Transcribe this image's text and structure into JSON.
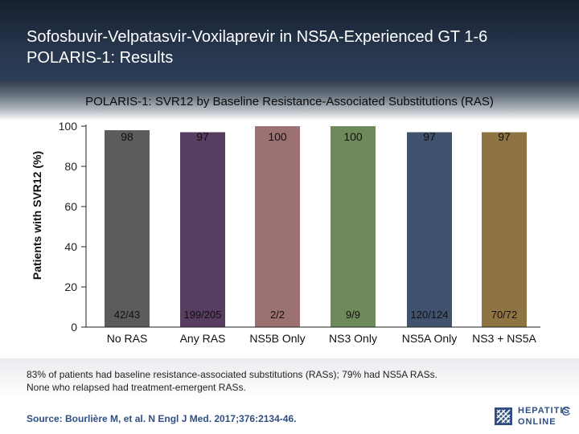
{
  "header": {
    "title_line1": "Sofosbuvir-Velpatasvir-Voxilaprevir in NS5A-Experienced GT 1-6",
    "title_line2": "POLARIS-1: Results"
  },
  "chart_data": {
    "type": "bar",
    "title": "POLARIS-1: SVR12 by Baseline Resistance-Associated Substitutions (RAS)",
    "ylabel": "Patients with SVR12 (%)",
    "xlabel": "",
    "ylim": [
      0,
      100
    ],
    "yticks": [
      0,
      20,
      40,
      60,
      80,
      100
    ],
    "grid": false,
    "categories": [
      "No RAS",
      "Any RAS",
      "NS5B Only",
      "NS3 Only",
      "NS5A Only",
      "NS3 + NS5A"
    ],
    "values": [
      98,
      97,
      100,
      100,
      97,
      97
    ],
    "value_labels": [
      "98",
      "97",
      "100",
      "100",
      "97",
      "97"
    ],
    "counts": [
      "42/43",
      "199/205",
      "2/2",
      "9/9",
      "120/124",
      "70/72"
    ],
    "colors": [
      "#5c5c5c",
      "#583d62",
      "#9b7171",
      "#6e8a5a",
      "#41526f",
      "#8e7443"
    ]
  },
  "footnote": {
    "line1": "83% of patients had baseline resistance-associated substitutions (RASs); 79% had NS5A RASs.",
    "line2": "None who relapsed had treatment-emergent RASs."
  },
  "source": "Source: Bourlière M, et al. N Engl J Med. 2017;376:2134-46.",
  "logo": {
    "line1": "HEPATITIS",
    "line2": "ONLINE",
    "letter": "C",
    "icon": "hepatitis-c-online-logo-icon"
  }
}
